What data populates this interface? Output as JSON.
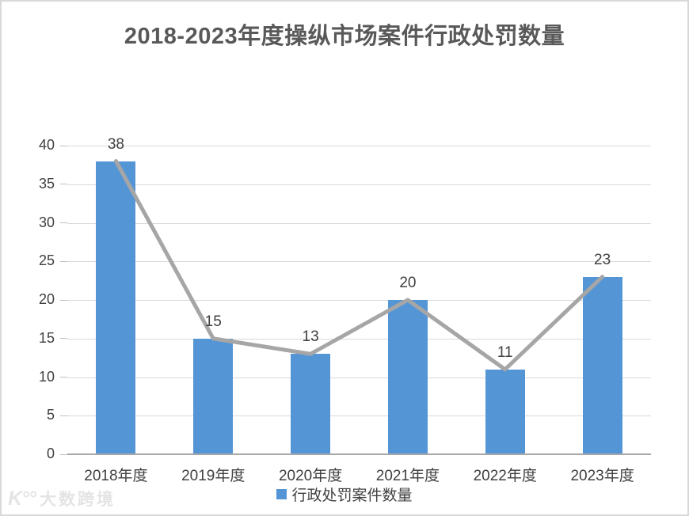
{
  "chart_data": {
    "type": "bar",
    "title": "2018-2023年度操纵市场案件行政处罚数量",
    "categories": [
      "2018年度",
      "2019年度",
      "2020年度",
      "2021年度",
      "2022年度",
      "2023年度"
    ],
    "series": [
      {
        "name": "行政处罚案件数量",
        "type": "bar",
        "values": [
          38,
          15,
          13,
          20,
          11,
          23
        ],
        "color": "#5495D6"
      },
      {
        "name": "",
        "type": "line",
        "values": [
          38,
          15,
          13,
          20,
          11,
          23
        ],
        "color": "#a6a6a6"
      }
    ],
    "data_labels": [
      38,
      15,
      13,
      20,
      11,
      23
    ],
    "ylim": [
      0,
      40
    ],
    "ytick_step": 5,
    "yticks": [
      0,
      5,
      10,
      15,
      20,
      25,
      30,
      35,
      40
    ],
    "grid": true,
    "legend_position": "bottom",
    "legend_entries": [
      "行政处罚案件数量"
    ]
  },
  "colors": {
    "bar": "#5495D6",
    "line": "#a6a6a6",
    "grid": "#d9d9d9",
    "axis": "#a8a8a8",
    "text": "#404040",
    "title": "#595959"
  },
  "watermark": {
    "logo": "K°°",
    "text": "大数跨境"
  }
}
